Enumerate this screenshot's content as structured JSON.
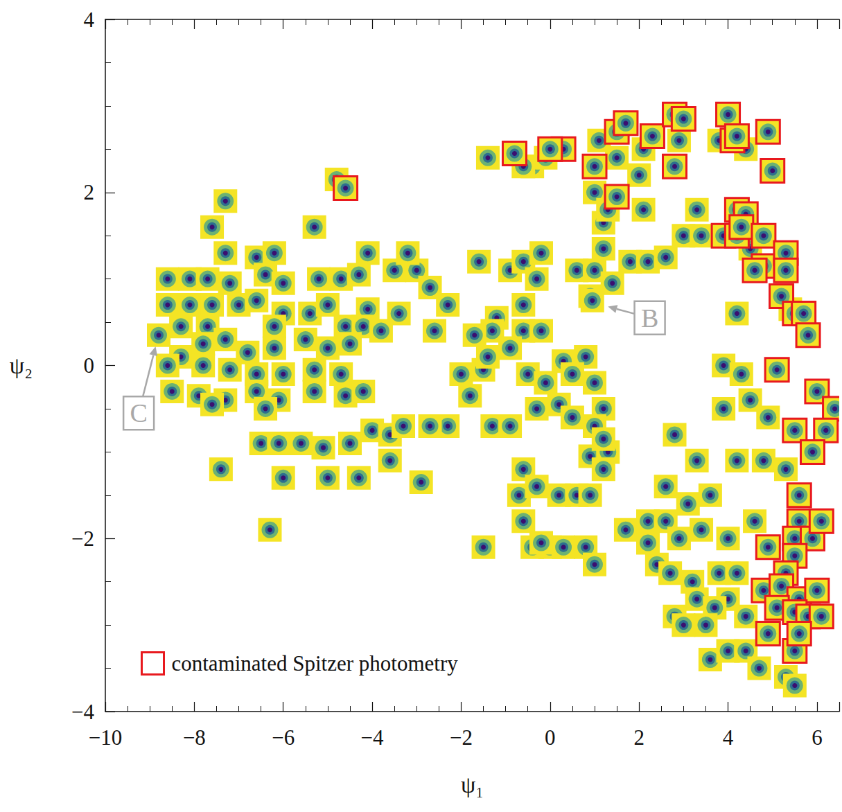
{
  "chart_data": {
    "type": "scatter",
    "xlabel": "ψ₁",
    "ylabel": "ψ₂",
    "xlim": [
      -10,
      6.5
    ],
    "ylim": [
      -4,
      4
    ],
    "xticks": [
      {
        "value": -10,
        "label": "−10"
      },
      {
        "value": -8,
        "label": "−8"
      },
      {
        "value": -6,
        "label": "−6"
      },
      {
        "value": -4,
        "label": "−4"
      },
      {
        "value": -2,
        "label": "−2"
      },
      0,
      2,
      4,
      6
    ],
    "yticks": [
      {
        "value": -4,
        "label": "−4"
      },
      {
        "value": -2,
        "label": "−2"
      },
      0,
      2,
      4
    ],
    "grid": false,
    "legend": "lower left",
    "marker": "square",
    "series": [
      {
        "name": "contaminated Spitzer photometry",
        "color": "#e8191e",
        "x": [
          -4.6,
          -0.8,
          0.3,
          0.0,
          1.0,
          1.5,
          1.7,
          2.3,
          2.8,
          2.8,
          3.0,
          1.5,
          4.0,
          4.1,
          4.9,
          5.0,
          4.2,
          3.9,
          4.2,
          4.4,
          4.2,
          4.3,
          4.8,
          4.8,
          4.6,
          5.3,
          5.3,
          5.2,
          5.5,
          5.7,
          5.8,
          5.1,
          5.5,
          6.0,
          6.4,
          6.2,
          5.9,
          5.6,
          5.6,
          5.5,
          5.9,
          6.1,
          4.9,
          5.5,
          5.3,
          4.8,
          5.2,
          5.6,
          6.0,
          5.1,
          5.5,
          5.8,
          6.1,
          4.9,
          5.5,
          5.6
        ],
        "y": [
          2.05,
          2.45,
          2.5,
          2.5,
          2.3,
          2.7,
          2.8,
          2.65,
          2.3,
          2.9,
          2.85,
          1.95,
          2.9,
          2.6,
          2.7,
          2.25,
          2.65,
          1.5,
          1.8,
          1.75,
          1.5,
          1.6,
          1.5,
          1.15,
          1.1,
          1.3,
          1.1,
          0.8,
          0.6,
          0.6,
          0.35,
          -0.05,
          -0.75,
          -0.3,
          -0.5,
          -0.75,
          -1.0,
          -1.5,
          -1.8,
          -2.0,
          -2.0,
          -1.8,
          -2.1,
          -2.2,
          -2.4,
          -2.6,
          -2.55,
          -2.7,
          -2.6,
          -2.8,
          -2.85,
          -2.9,
          -2.9,
          -3.1,
          -3.3,
          -3.1
        ]
      },
      {
        "color": "#f4e425",
        "x": [
          -7.3,
          -7.6,
          -4.8,
          -5.3,
          -7.3,
          -6.6,
          -6.2,
          -8.6,
          -8.1,
          -7.7,
          -7.2,
          -6.4,
          -6.0,
          -5.2,
          -4.7,
          -4.3,
          -4.1,
          -8.6,
          -8.1,
          -7.6,
          -7.0,
          -6.6,
          -6.0,
          -5.4,
          -5.0,
          -4.1,
          -8.3,
          -7.7,
          -6.2,
          -4.6,
          -4.2,
          -8.8,
          -8.3,
          -7.8,
          -7.3,
          -6.8,
          -6.2,
          -5.5,
          -5.0,
          -4.5,
          -8.6,
          -7.8,
          -7.2,
          -6.6,
          -6.0,
          -5.3,
          -4.7,
          -8.5,
          -7.9,
          -7.3,
          -6.6,
          -6.1,
          -5.3,
          -4.6,
          -7.6,
          -6.4,
          -4.2,
          -6.5,
          -6.1,
          -5.6,
          -5.1,
          -4.5,
          -4.0,
          -3.6,
          -7.4,
          -6.0,
          -5.0,
          -4.3,
          -3.6,
          -2.9,
          -6.3,
          -3.5,
          -3.0,
          -3.2,
          -2.7,
          -2.3,
          -2.6,
          -3.4,
          -3.8,
          -1.6,
          -0.9,
          -0.6,
          -0.2,
          -0.3,
          -0.6,
          -1.2,
          -1.3,
          -0.6,
          -0.2,
          -1.7,
          -2.0,
          -1.5,
          -1.4,
          -0.9,
          -0.5,
          -0.1,
          0.3,
          0.8,
          0.5,
          1.0,
          1.2,
          -1.8,
          -2.3,
          -2.7,
          -3.3,
          -1.3,
          -0.9,
          -0.3,
          0.2,
          0.5,
          1.0,
          0.9,
          1.3,
          1.2,
          -0.6,
          -0.7,
          -0.3,
          0.2,
          0.6,
          0.9,
          -0.6,
          -1.5,
          -0.4,
          0.0,
          0.3,
          0.8,
          1.0,
          1.7,
          1.2,
          0.6,
          0.9,
          1.0,
          1.4,
          0.95,
          1.2,
          1.8,
          2.2,
          2.6,
          1.2,
          1.0,
          1.3,
          2.1,
          -1.4,
          -0.4,
          -0.1,
          -0.6,
          1.1,
          1.5,
          2.0,
          2.9,
          2.1,
          3.8,
          4.4,
          3.3,
          3.0,
          3.4,
          4.5,
          5.4,
          4.2,
          3.9,
          4.3,
          4.5,
          4.9,
          4.8,
          5.3,
          4.2,
          3.3,
          2.8,
          3.9,
          2.6,
          3.1,
          3.6,
          2.2,
          2.6,
          2.9,
          3.4,
          4.0,
          4.6,
          2.4,
          2.7,
          3.2,
          3.3,
          3.8,
          4.2,
          4.0,
          4.4,
          3.7,
          3.5,
          3.6,
          4.0,
          4.4,
          4.7,
          5.3,
          5.5,
          2.8,
          3.0,
          2.2,
          -0.2
        ],
        "y": [
          1.9,
          1.6,
          2.15,
          1.6,
          1.3,
          1.25,
          1.3,
          1.0,
          1.0,
          1.0,
          0.95,
          1.05,
          0.95,
          1.0,
          1.0,
          1.05,
          1.3,
          0.7,
          0.7,
          0.7,
          0.7,
          0.75,
          0.6,
          0.6,
          0.7,
          0.65,
          0.45,
          0.45,
          0.45,
          0.45,
          0.45,
          0.35,
          0.1,
          0.25,
          0.3,
          0.15,
          0.2,
          0.3,
          0.2,
          0.25,
          0.0,
          0.0,
          -0.05,
          -0.1,
          -0.1,
          -0.05,
          -0.1,
          -0.3,
          -0.35,
          -0.4,
          -0.3,
          -0.4,
          -0.3,
          -0.35,
          -0.45,
          -0.5,
          -0.3,
          -0.9,
          -0.9,
          -0.9,
          -0.95,
          -0.9,
          -0.75,
          -0.8,
          -1.2,
          -1.3,
          -1.3,
          -1.3,
          -1.1,
          -1.35,
          -1.9,
          1.1,
          1.1,
          1.3,
          0.9,
          0.7,
          0.4,
          0.6,
          0.4,
          1.2,
          1.1,
          1.2,
          1.3,
          1.0,
          0.7,
          0.55,
          0.4,
          0.4,
          0.4,
          0.35,
          -0.1,
          -0.05,
          0.1,
          0.2,
          -0.1,
          -0.2,
          0.05,
          0.1,
          -0.1,
          -0.2,
          -0.5,
          -0.35,
          -0.7,
          -0.7,
          -0.7,
          -0.7,
          -0.7,
          -0.5,
          -0.45,
          -0.6,
          -0.7,
          -1.05,
          -1.0,
          -1.2,
          -1.2,
          -1.5,
          -1.4,
          -1.5,
          -1.5,
          -1.5,
          -1.8,
          -2.1,
          -2.1,
          -2.1,
          -2.1,
          -2.1,
          -2.3,
          -1.9,
          -0.85,
          1.1,
          0.8,
          1.1,
          0.95,
          0.75,
          1.35,
          1.2,
          1.2,
          1.25,
          1.65,
          2.0,
          1.8,
          1.8,
          2.4,
          2.3,
          2.4,
          2.3,
          2.6,
          2.4,
          2.2,
          2.6,
          2.5,
          2.6,
          2.5,
          1.8,
          1.5,
          1.5,
          1.35,
          0.65,
          0.6,
          0.0,
          -0.1,
          -0.4,
          -0.6,
          -1.1,
          -1.2,
          -1.1,
          -1.1,
          -0.8,
          -0.5,
          -1.4,
          -1.6,
          -1.5,
          -1.8,
          -1.8,
          -2.0,
          -1.9,
          -2.0,
          -1.8,
          -2.3,
          -2.4,
          -2.5,
          -2.7,
          -2.4,
          -2.4,
          -2.7,
          -2.9,
          -2.8,
          -3.0,
          -3.4,
          -3.3,
          -3.3,
          -3.5,
          -3.6,
          -3.7,
          -2.9,
          -3.0,
          -2.05,
          -2.05
        ]
      }
    ],
    "annotations": [
      {
        "text": "B",
        "x": 2.24,
        "y": 0.55,
        "arrow_to": [
          1.3,
          0.68
        ]
      },
      {
        "text": "C",
        "x": -9.25,
        "y": -0.55,
        "arrow_to": [
          -8.87,
          0.22
        ]
      }
    ]
  }
}
